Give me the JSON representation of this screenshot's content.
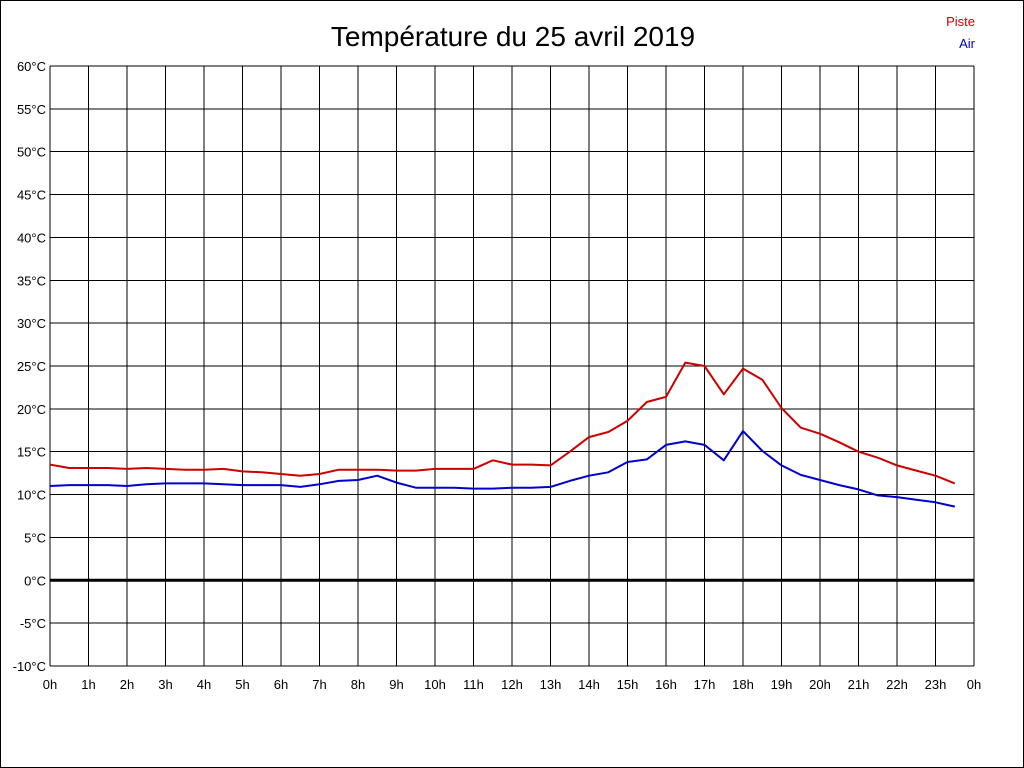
{
  "chart_data": {
    "type": "line",
    "title": "Température du 25 avril 2019",
    "xlabel": "",
    "ylabel": "",
    "xlim": [
      0,
      24
    ],
    "ylim": [
      -10,
      60
    ],
    "grid": true,
    "legend_position": "top-right",
    "x_ticks": [
      0,
      1,
      2,
      3,
      4,
      5,
      6,
      7,
      8,
      9,
      10,
      11,
      12,
      13,
      14,
      15,
      16,
      17,
      18,
      19,
      20,
      21,
      22,
      23,
      24
    ],
    "x_tick_labels": [
      "0h",
      "1h",
      "2h",
      "3h",
      "4h",
      "5h",
      "6h",
      "7h",
      "8h",
      "9h",
      "10h",
      "11h",
      "12h",
      "13h",
      "14h",
      "15h",
      "16h",
      "17h",
      "18h",
      "19h",
      "20h",
      "21h",
      "22h",
      "23h",
      "0h"
    ],
    "y_ticks": [
      -10,
      -5,
      0,
      5,
      10,
      15,
      20,
      25,
      30,
      35,
      40,
      45,
      50,
      55,
      60
    ],
    "y_tick_labels": [
      "-10°C",
      "-5°C",
      "0°C",
      "5°C",
      "10°C",
      "15°C",
      "20°C",
      "25°C",
      "30°C",
      "35°C",
      "40°C",
      "45°C",
      "50°C",
      "55°C",
      "60°C"
    ],
    "x": [
      0,
      0.5,
      1,
      1.5,
      2,
      2.5,
      3,
      3.5,
      4,
      4.5,
      5,
      5.5,
      6,
      6.5,
      7,
      7.5,
      8,
      8.5,
      9,
      9.5,
      10,
      10.5,
      11,
      11.5,
      12,
      12.5,
      13,
      13.5,
      14,
      14.5,
      15,
      15.5,
      16,
      16.5,
      17,
      17.5,
      18,
      18.5,
      19,
      19.5,
      20,
      20.5,
      21,
      21.5,
      22,
      22.5,
      23,
      23.5
    ],
    "series": [
      {
        "name": "Piste",
        "color": "#cc0000",
        "values": [
          13.5,
          13.1,
          13.1,
          13.1,
          13.0,
          13.1,
          13.0,
          12.9,
          12.9,
          13.0,
          12.7,
          12.6,
          12.4,
          12.2,
          12.4,
          12.9,
          12.9,
          12.9,
          12.8,
          12.8,
          13.0,
          13.0,
          13.0,
          14.0,
          13.5,
          13.5,
          13.4,
          15.0,
          16.7,
          17.3,
          18.6,
          20.8,
          21.4,
          25.4,
          25.0,
          21.7,
          24.7,
          23.4,
          20.1,
          17.8,
          17.1,
          16.1,
          15.0,
          14.3,
          13.4,
          12.8,
          12.2,
          11.3
        ]
      },
      {
        "name": "Air",
        "color": "#0000cc",
        "values": [
          11.0,
          11.1,
          11.1,
          11.1,
          11.0,
          11.2,
          11.3,
          11.3,
          11.3,
          11.2,
          11.1,
          11.1,
          11.1,
          10.9,
          11.2,
          11.6,
          11.7,
          12.2,
          11.4,
          10.8,
          10.8,
          10.8,
          10.7,
          10.7,
          10.8,
          10.8,
          10.9,
          11.6,
          12.2,
          12.6,
          13.8,
          14.1,
          15.8,
          16.2,
          15.8,
          14.0,
          17.4,
          15.1,
          13.4,
          12.3,
          11.7,
          11.1,
          10.6,
          9.9,
          9.7,
          9.4,
          9.1,
          8.6
        ]
      }
    ],
    "baseline": 0
  }
}
